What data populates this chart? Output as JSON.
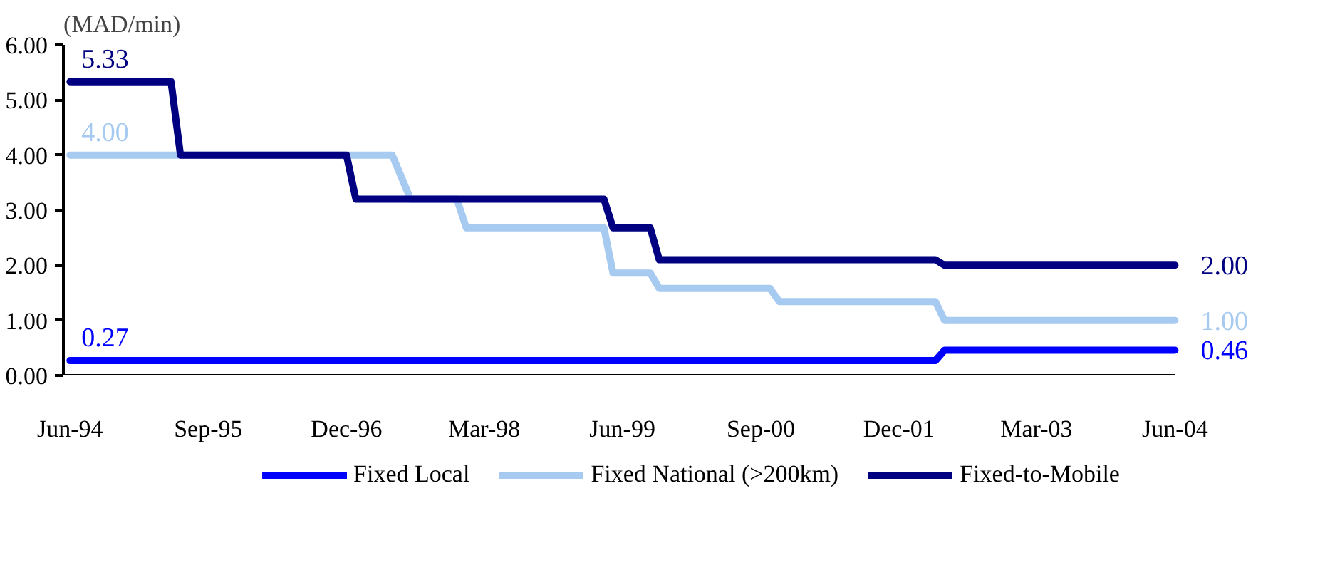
{
  "chart_data": {
    "type": "line",
    "ylabel": "(MAD/min)",
    "x": [
      "1994-06",
      "1995-05",
      "1995-06",
      "1996-12",
      "1997-01",
      "1997-05",
      "1997-07",
      "1997-12",
      "1998-01",
      "1999-04",
      "1999-05",
      "1999-09",
      "1999-10",
      "2000-10",
      "2000-11",
      "2002-04",
      "2002-05",
      "2004-06"
    ],
    "series": [
      {
        "name": "Fixed Local",
        "color": "#0000ff",
        "values": [
          0.27,
          0.27,
          0.27,
          0.27,
          0.27,
          0.27,
          0.27,
          0.27,
          0.27,
          0.27,
          0.27,
          0.27,
          0.27,
          0.27,
          0.27,
          0.27,
          0.46,
          0.46
        ]
      },
      {
        "name": "Fixed National (>200km)",
        "color": "#a6caf0",
        "values": [
          4.0,
          4.0,
          4.0,
          4.0,
          4.0,
          4.0,
          3.2,
          3.2,
          2.68,
          2.68,
          1.86,
          1.86,
          1.58,
          1.58,
          1.34,
          1.34,
          1.0,
          1.0
        ]
      },
      {
        "name": "Fixed-to-Mobile",
        "color": "#000080",
        "values": [
          5.33,
          5.33,
          4.0,
          4.0,
          3.2,
          3.2,
          3.2,
          3.2,
          3.2,
          3.2,
          2.68,
          2.68,
          2.1,
          2.1,
          2.1,
          2.1,
          2.0,
          2.0
        ]
      }
    ],
    "annotations": [
      {
        "text": "5.33",
        "x": "1994-06",
        "y": 5.33
      },
      {
        "text": "4.00",
        "x": "1994-06",
        "y": 4.0
      },
      {
        "text": "0.27",
        "x": "1994-06",
        "y": 0.27
      },
      {
        "text": "2.00",
        "x": "2004-06",
        "y": 2.0
      },
      {
        "text": "1.00",
        "x": "2004-06",
        "y": 1.0
      },
      {
        "text": "0.46",
        "x": "2004-06",
        "y": 0.46
      }
    ],
    "xlim": [
      "1994-06",
      "2004-06"
    ],
    "xticks": [
      {
        "value": "1994-06",
        "label": "Jun-94"
      },
      {
        "value": "1995-09",
        "label": "Sep-95"
      },
      {
        "value": "1996-12",
        "label": "Dec-96"
      },
      {
        "value": "1998-03",
        "label": "Mar-98"
      },
      {
        "value": "1999-06",
        "label": "Jun-99"
      },
      {
        "value": "2000-09",
        "label": "Sep-00"
      },
      {
        "value": "2001-12",
        "label": "Dec-01"
      },
      {
        "value": "2003-03",
        "label": "Mar-03"
      },
      {
        "value": "2004-06",
        "label": "Jun-04"
      }
    ],
    "ylim": [
      0,
      6
    ],
    "yticks": [
      {
        "value": 0,
        "label": "0.00"
      },
      {
        "value": 1,
        "label": "1.00"
      },
      {
        "value": 2,
        "label": "2.00"
      },
      {
        "value": 3,
        "label": "3.00"
      },
      {
        "value": 4,
        "label": "4.00"
      },
      {
        "value": 5,
        "label": "5.00"
      },
      {
        "value": 6,
        "label": "6.00"
      }
    ],
    "grid": false,
    "legend": "bottom",
    "marker": "none",
    "line_style": "solid"
  }
}
